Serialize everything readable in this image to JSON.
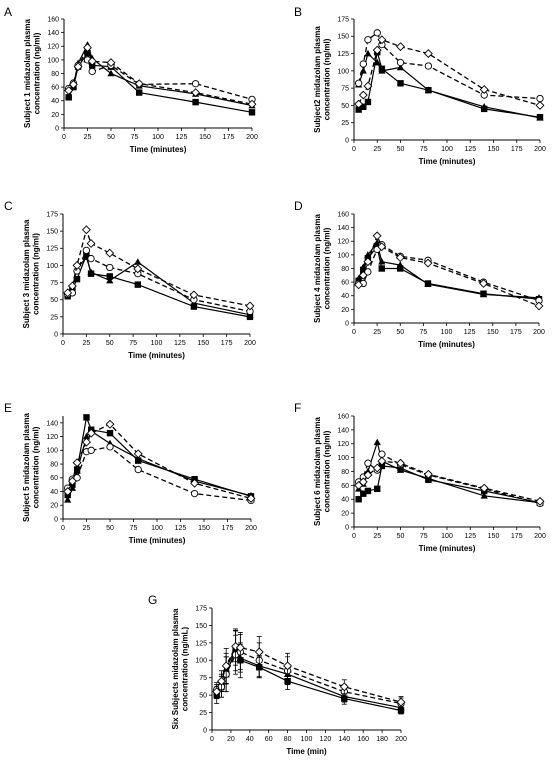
{
  "figure": {
    "marker_legend": {
      "filled-square": "solid black square",
      "open-circle": "open circle",
      "open-diamond": "open diamond",
      "filled-triangle": "solid black triangle"
    }
  },
  "chart_data": [
    {
      "panel": "A",
      "type": "line",
      "xlabel": "Time (minutes)",
      "ylabel": [
        "Subject 1 midazolam plasma",
        "concentration (ng/ml)"
      ],
      "xlim": [
        0,
        200
      ],
      "ylim": [
        0,
        160
      ],
      "xticks": [
        0,
        25,
        50,
        75,
        100,
        125,
        150,
        175,
        200
      ],
      "yticks": [
        0,
        20,
        40,
        60,
        80,
        100,
        120,
        140,
        160
      ],
      "series": [
        {
          "style": "solid",
          "marker": "filled-square",
          "x": [
            5,
            10,
            15,
            25,
            30,
            50,
            80,
            140,
            200
          ],
          "y": [
            45,
            60,
            90,
            110,
            92,
            90,
            52,
            38,
            23
          ]
        },
        {
          "style": "solid",
          "marker": "filled-triangle",
          "x": [
            5,
            10,
            15,
            25,
            30,
            50,
            80,
            140,
            200
          ],
          "y": [
            48,
            62,
            95,
            122,
            102,
            80,
            62,
            50,
            33
          ]
        },
        {
          "style": "dashed",
          "marker": "open-circle",
          "x": [
            5,
            10,
            15,
            25,
            30,
            50,
            80,
            140,
            200
          ],
          "y": [
            58,
            66,
            92,
            100,
            83,
            92,
            64,
            65,
            42
          ]
        },
        {
          "style": "dashed",
          "marker": "open-diamond",
          "x": [
            5,
            10,
            15,
            25,
            30,
            50,
            80,
            140,
            200
          ],
          "y": [
            55,
            64,
            90,
            118,
            98,
            96,
            65,
            52,
            35
          ]
        }
      ]
    },
    {
      "panel": "B",
      "type": "line",
      "xlabel": "Time (minutes)",
      "ylabel": [
        "Subject2 midazolam plasma",
        "concentration (ng/ml)"
      ],
      "xlim": [
        0,
        200
      ],
      "ylim": [
        0,
        175
      ],
      "xticks": [
        0,
        25,
        50,
        75,
        100,
        125,
        150,
        175,
        200
      ],
      "yticks": [
        0,
        25,
        50,
        75,
        100,
        125,
        150,
        175
      ],
      "series": [
        {
          "style": "solid",
          "marker": "filled-square",
          "x": [
            5,
            10,
            15,
            25,
            30,
            50,
            80,
            140,
            200
          ],
          "y": [
            44,
            48,
            55,
            127,
            103,
            82,
            72,
            45,
            33
          ]
        },
        {
          "style": "solid",
          "marker": "filled-triangle",
          "x": [
            5,
            10,
            15,
            25,
            30,
            50,
            80,
            140,
            200
          ],
          "y": [
            80,
            100,
            125,
            112,
            100,
            105,
            72,
            48,
            32
          ]
        },
        {
          "style": "dashed",
          "marker": "open-circle",
          "x": [
            5,
            10,
            15,
            25,
            30,
            50,
            80,
            140,
            200
          ],
          "y": [
            82,
            110,
            145,
            155,
            138,
            112,
            107,
            65,
            60
          ]
        },
        {
          "style": "dashed",
          "marker": "open-diamond",
          "x": [
            5,
            10,
            15,
            25,
            30,
            50,
            80,
            140,
            200
          ],
          "y": [
            52,
            65,
            78,
            130,
            145,
            135,
            125,
            73,
            50
          ]
        }
      ]
    },
    {
      "panel": "C",
      "type": "line",
      "xlabel": "Time (minutes)",
      "ylabel": [
        "Subject 3 midazolam plasma",
        "concentration (ng/ml)"
      ],
      "xlim": [
        0,
        200
      ],
      "ylim": [
        0,
        175
      ],
      "xticks": [
        0,
        25,
        50,
        75,
        100,
        125,
        150,
        175,
        200
      ],
      "yticks": [
        0,
        25,
        50,
        75,
        100,
        125,
        150,
        175
      ],
      "series": [
        {
          "style": "solid",
          "marker": "filled-square",
          "x": [
            5,
            10,
            15,
            25,
            30,
            50,
            80,
            140,
            200
          ],
          "y": [
            55,
            65,
            80,
            115,
            88,
            84,
            72,
            40,
            25
          ]
        },
        {
          "style": "solid",
          "marker": "filled-triangle",
          "x": [
            5,
            10,
            15,
            25,
            30,
            50,
            80,
            140,
            200
          ],
          "y": [
            58,
            68,
            95,
            112,
            90,
            78,
            105,
            45,
            28
          ]
        },
        {
          "style": "dashed",
          "marker": "open-circle",
          "x": [
            5,
            10,
            15,
            25,
            30,
            50,
            80,
            140,
            200
          ],
          "y": [
            58,
            60,
            92,
            122,
            110,
            97,
            88,
            50,
            33
          ]
        },
        {
          "style": "dashed",
          "marker": "open-diamond",
          "x": [
            5,
            10,
            15,
            25,
            30,
            50,
            80,
            140,
            200
          ],
          "y": [
            60,
            70,
            100,
            152,
            132,
            118,
            95,
            57,
            41
          ]
        }
      ]
    },
    {
      "panel": "D",
      "type": "line",
      "xlabel": "Time (minutes)",
      "ylabel": [
        "Subject 4 midazolam plasma",
        "concentration (ng/ml)"
      ],
      "xlim": [
        0,
        200
      ],
      "ylim": [
        0,
        160
      ],
      "xticks": [
        0,
        25,
        50,
        75,
        100,
        125,
        150,
        175,
        200
      ],
      "yticks": [
        0,
        20,
        40,
        60,
        80,
        100,
        120,
        140,
        160
      ],
      "series": [
        {
          "style": "solid",
          "marker": "filled-square",
          "x": [
            5,
            10,
            15,
            25,
            30,
            50,
            80,
            140,
            200
          ],
          "y": [
            62,
            78,
            95,
            112,
            80,
            80,
            58,
            43,
            35
          ]
        },
        {
          "style": "solid",
          "marker": "filled-triangle",
          "x": [
            5,
            10,
            15,
            25,
            30,
            50,
            80,
            140,
            200
          ],
          "y": [
            65,
            82,
            100,
            118,
            90,
            85,
            57,
            42,
            37
          ]
        },
        {
          "style": "dashed",
          "marker": "open-circle",
          "x": [
            5,
            10,
            15,
            25,
            30,
            50,
            80,
            140,
            200
          ],
          "y": [
            58,
            58,
            75,
            108,
            115,
            98,
            92,
            60,
            33
          ]
        },
        {
          "style": "dashed",
          "marker": "open-diamond",
          "x": [
            5,
            10,
            15,
            25,
            30,
            50,
            80,
            140,
            200
          ],
          "y": [
            56,
            70,
            90,
            128,
            112,
            96,
            88,
            58,
            25
          ]
        }
      ]
    },
    {
      "panel": "E",
      "type": "line",
      "xlabel": "Time (minutes)",
      "ylabel": [
        "Subject 5 midazolam plasma",
        "concentration (ng/ml)"
      ],
      "xlim": [
        0,
        200
      ],
      "ylim": [
        0,
        150
      ],
      "xticks": [
        0,
        25,
        50,
        75,
        100,
        125,
        150,
        175,
        200
      ],
      "yticks": [
        0,
        20,
        40,
        60,
        80,
        100,
        120,
        140
      ],
      "series": [
        {
          "style": "solid",
          "marker": "filled-square",
          "x": [
            5,
            10,
            15,
            25,
            30,
            50,
            80,
            140,
            200
          ],
          "y": [
            35,
            50,
            72,
            148,
            130,
            125,
            85,
            58,
            33
          ]
        },
        {
          "style": "solid",
          "marker": "filled-triangle",
          "x": [
            5,
            10,
            15,
            25,
            30,
            50,
            80,
            140,
            200
          ],
          "y": [
            28,
            45,
            70,
            120,
            128,
            110,
            88,
            55,
            34
          ]
        },
        {
          "style": "dashed",
          "marker": "open-circle",
          "x": [
            5,
            10,
            15,
            25,
            30,
            50,
            80,
            140,
            200
          ],
          "y": [
            45,
            58,
            60,
            98,
            100,
            105,
            72,
            37,
            27
          ]
        },
        {
          "style": "dashed",
          "marker": "open-diamond",
          "x": [
            5,
            10,
            15,
            25,
            30,
            50,
            80,
            140,
            200
          ],
          "y": [
            40,
            55,
            82,
            112,
            125,
            138,
            95,
            52,
            30
          ]
        }
      ]
    },
    {
      "panel": "F",
      "type": "line",
      "xlabel": "Time (minutes)",
      "ylabel": [
        "Subject 6 midazolam plasma",
        "concentration (ng/ml)"
      ],
      "xlim": [
        0,
        200
      ],
      "ylim": [
        0,
        160
      ],
      "xticks": [
        0,
        25,
        50,
        75,
        100,
        125,
        150,
        175,
        200
      ],
      "yticks": [
        0,
        20,
        40,
        60,
        80,
        100,
        120,
        140,
        160
      ],
      "series": [
        {
          "style": "solid",
          "marker": "filled-square",
          "x": [
            5,
            10,
            15,
            25,
            30,
            50,
            80,
            140,
            200
          ],
          "y": [
            40,
            48,
            52,
            55,
            88,
            85,
            68,
            52,
            35
          ]
        },
        {
          "style": "solid",
          "marker": "filled-triangle",
          "x": [
            5,
            10,
            15,
            25,
            30,
            50,
            80,
            140,
            200
          ],
          "y": [
            55,
            62,
            80,
            122,
            95,
            82,
            70,
            45,
            35
          ]
        },
        {
          "style": "dashed",
          "marker": "open-circle",
          "x": [
            5,
            10,
            15,
            25,
            30,
            50,
            80,
            140,
            200
          ],
          "y": [
            65,
            72,
            92,
            82,
            105,
            90,
            75,
            55,
            34
          ]
        },
        {
          "style": "dashed",
          "marker": "open-diamond",
          "x": [
            5,
            10,
            15,
            25,
            30,
            50,
            80,
            140,
            200
          ],
          "y": [
            60,
            65,
            75,
            85,
            95,
            92,
            76,
            56,
            37
          ]
        }
      ]
    },
    {
      "panel": "G",
      "type": "line",
      "xlabel": "Time (min)",
      "ylabel": [
        "Six Subjects midazolam plasma",
        "concentration (ng/mL)"
      ],
      "xlim": [
        0,
        200
      ],
      "ylim": [
        0,
        175
      ],
      "xticks": [
        0,
        20,
        40,
        60,
        80,
        100,
        120,
        140,
        160,
        180,
        200
      ],
      "yticks": [
        0,
        25,
        50,
        75,
        100,
        125,
        150,
        175
      ],
      "series": [
        {
          "style": "solid",
          "marker": "filled-square",
          "x": [
            5,
            10,
            15,
            25,
            30,
            50,
            80,
            140,
            200
          ],
          "y": [
            50,
            62,
            80,
            115,
            100,
            90,
            70,
            45,
            28
          ],
          "err": [
            12,
            15,
            25,
            30,
            25,
            15,
            12,
            8,
            5
          ]
        },
        {
          "style": "solid",
          "marker": "filled-triangle",
          "x": [
            5,
            10,
            15,
            25,
            30,
            50,
            80,
            140,
            200
          ],
          "y": [
            55,
            68,
            88,
            118,
            103,
            92,
            80,
            48,
            32
          ],
          "err": [
            10,
            12,
            22,
            25,
            20,
            15,
            12,
            8,
            5
          ]
        },
        {
          "style": "dashed",
          "marker": "open-circle",
          "x": [
            5,
            10,
            15,
            25,
            30,
            50,
            80,
            140,
            200
          ],
          "y": [
            58,
            62,
            80,
            108,
            112,
            100,
            85,
            55,
            38
          ],
          "err": [
            10,
            15,
            25,
            28,
            25,
            25,
            20,
            10,
            8
          ]
        },
        {
          "style": "dashed",
          "marker": "open-diamond",
          "x": [
            5,
            10,
            15,
            25,
            30,
            50,
            80,
            140,
            200
          ],
          "y": [
            55,
            70,
            92,
            120,
            118,
            112,
            92,
            62,
            40
          ],
          "err": [
            10,
            15,
            25,
            22,
            22,
            22,
            18,
            10,
            8
          ]
        }
      ]
    }
  ]
}
